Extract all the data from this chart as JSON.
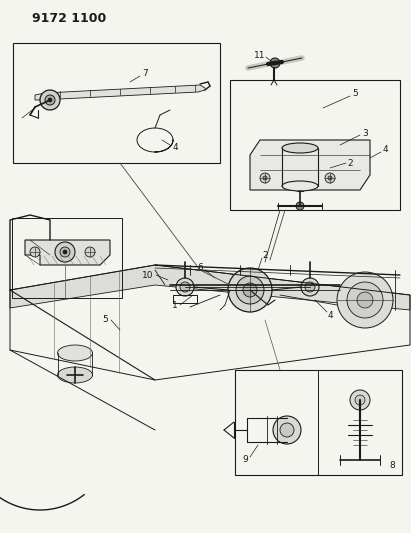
{
  "title_code": "9172 1100",
  "bg_color": "#f5f5f0",
  "line_color": "#1a1a1a",
  "fig_width": 4.11,
  "fig_height": 5.33,
  "dpi": 100,
  "title_fontsize": 9,
  "label_fontsize": 6.5
}
